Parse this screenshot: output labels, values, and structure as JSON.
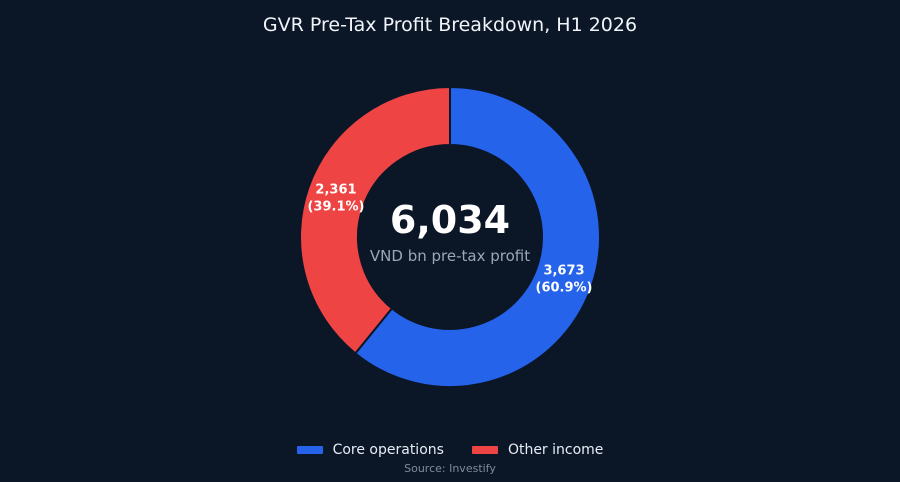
{
  "chart_data": {
    "type": "pie",
    "variant": "donut",
    "title": "GVR Pre-Tax Profit Breakdown, H1 2026",
    "center": {
      "value": "6,034",
      "caption": "VND bn pre-tax profit"
    },
    "slices": [
      {
        "name": "Core operations",
        "value": 3673,
        "value_label": "3,673",
        "percent_label": "(60.9%)",
        "color": "#2563eb"
      },
      {
        "name": "Other income",
        "value": 2361,
        "value_label": "2,361",
        "percent_label": "(39.1%)",
        "color": "#ef4444"
      }
    ],
    "legend_position": "bottom-center",
    "source": "Source: Investify"
  },
  "colors": {
    "background": "#0b1627",
    "slice_border": "#0b1627"
  }
}
